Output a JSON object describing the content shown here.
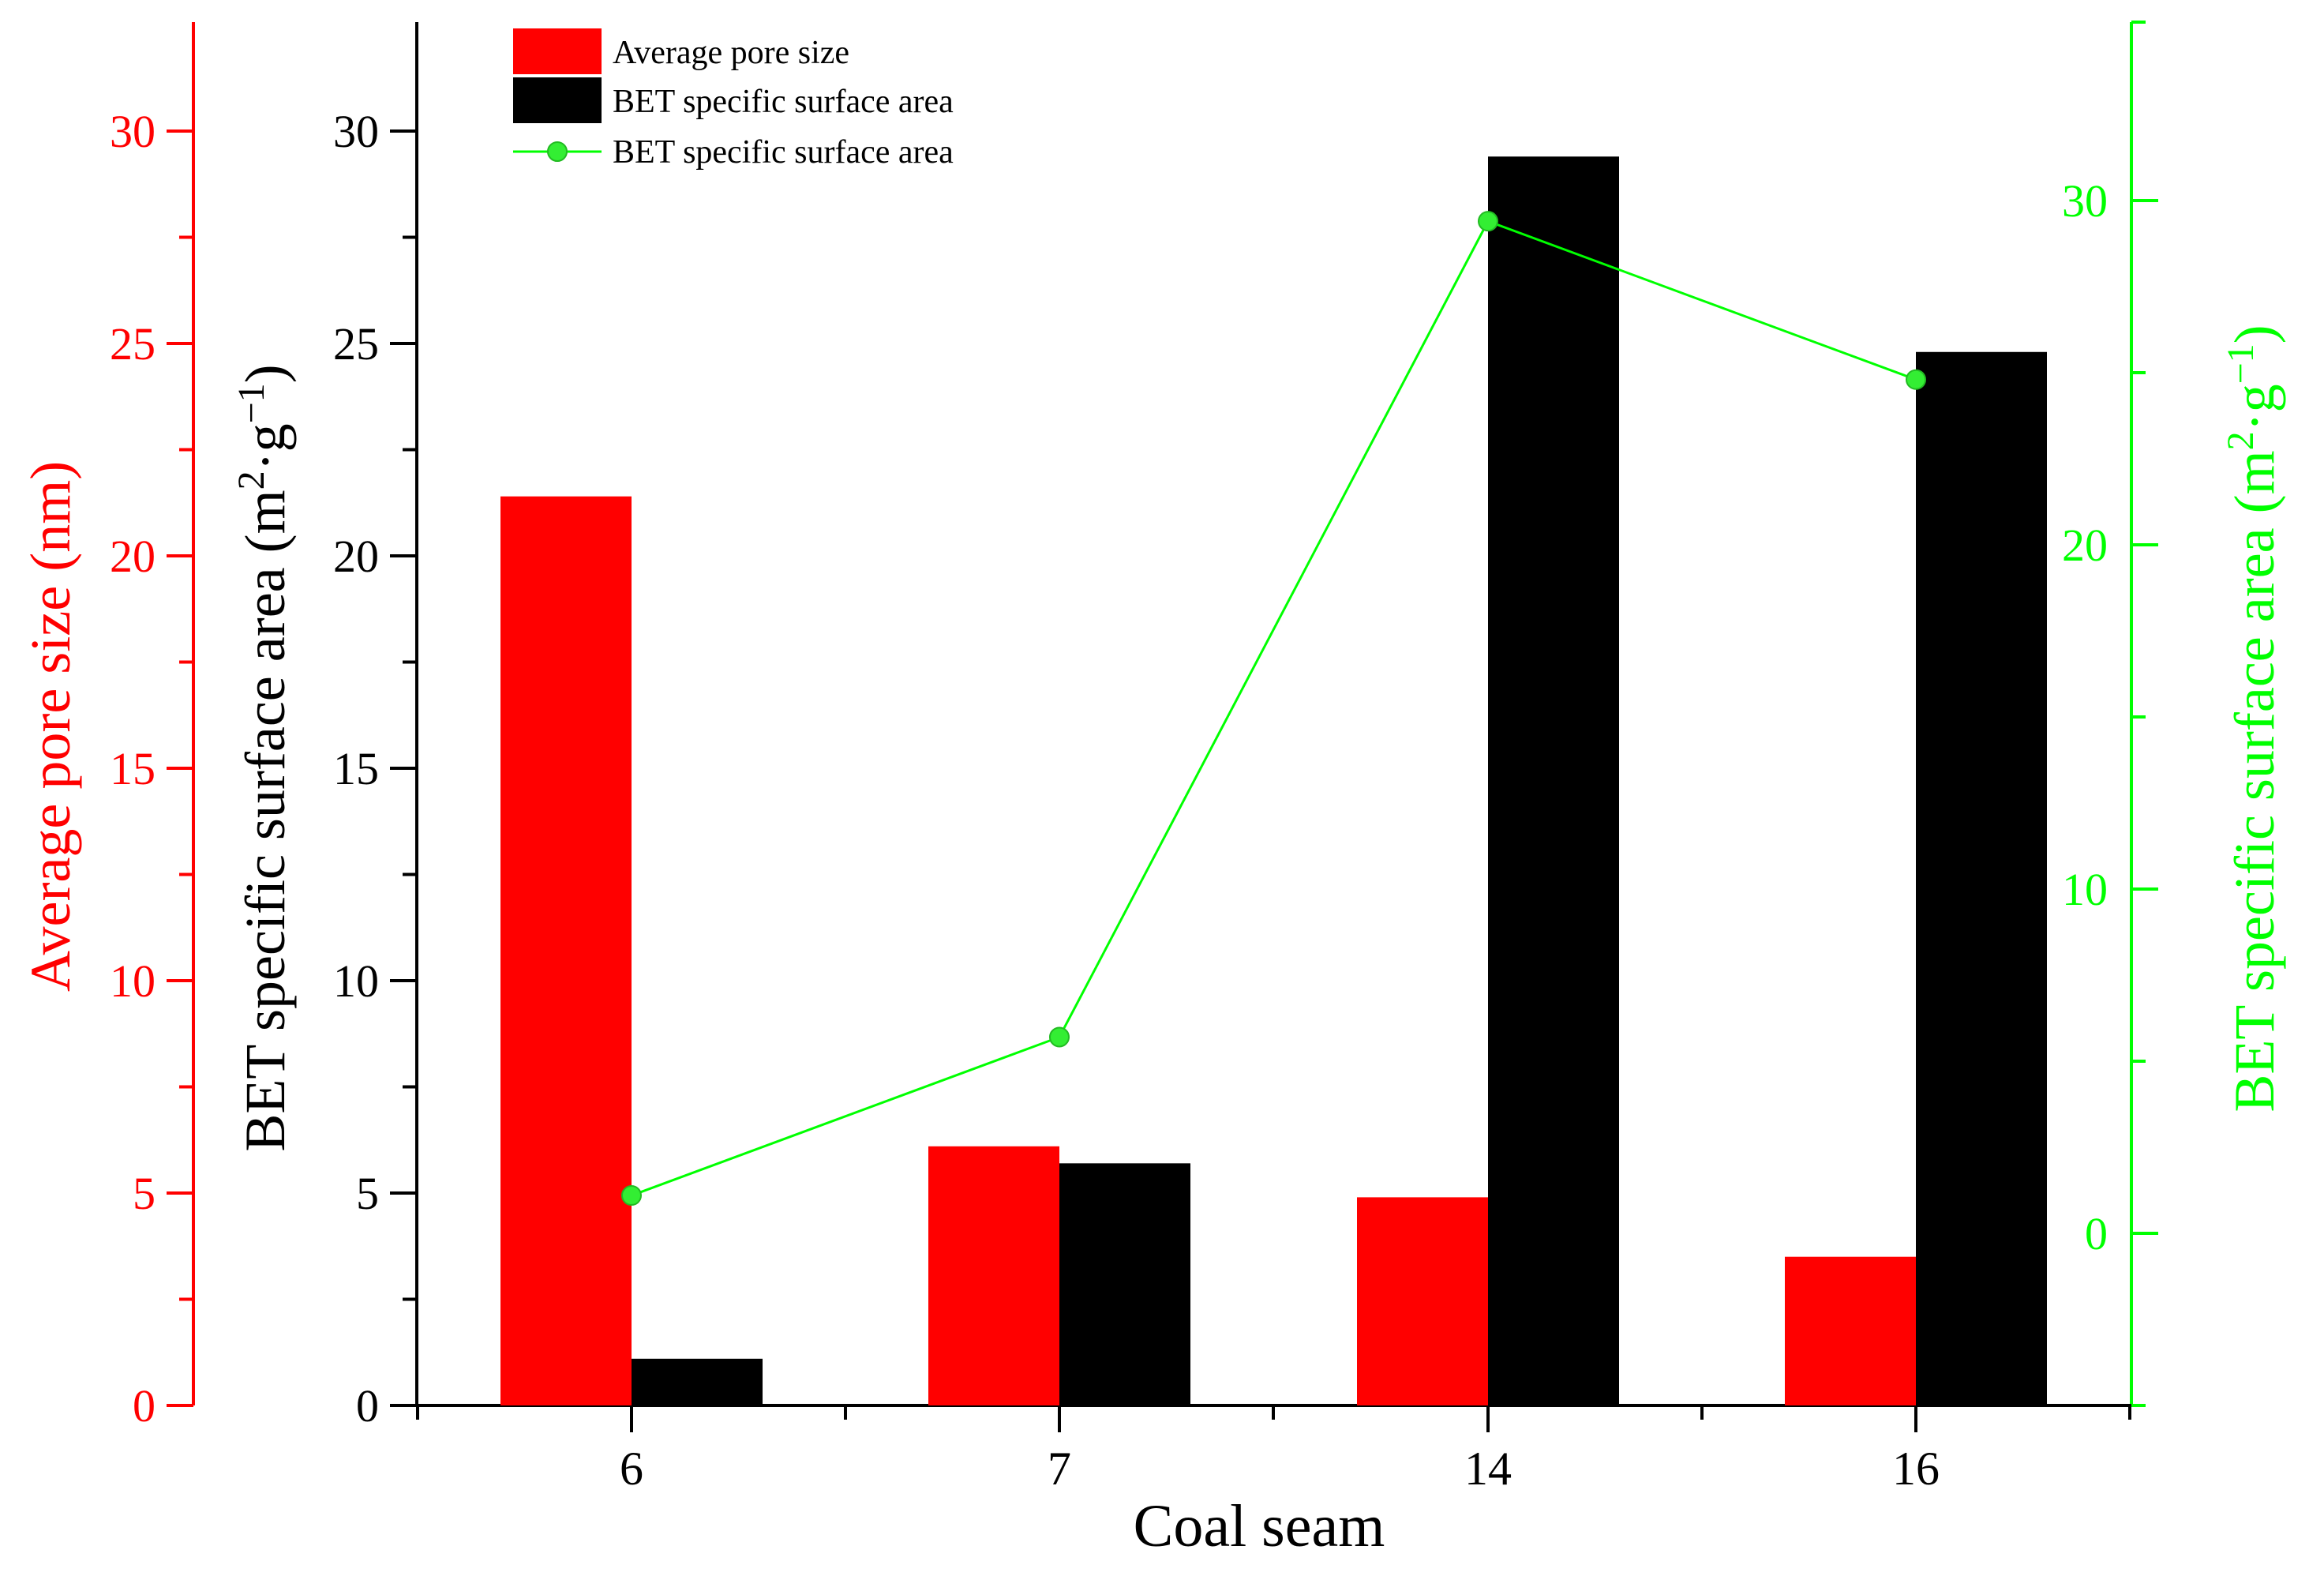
{
  "colors": {
    "pore": "#ff0000",
    "bet_bar": "#000000",
    "bet_line": "#00ff00",
    "line_marker_fill": "#33ee33",
    "axis_black": "#000000"
  },
  "chart_data": {
    "type": "bar",
    "xlabel": "Coal seam",
    "categories": [
      "6",
      "7",
      "14",
      "16"
    ],
    "axes": {
      "left_outer": {
        "label": "Average pore size (nm)",
        "range": [
          0,
          32.5
        ],
        "ticks": [
          0,
          5,
          10,
          15,
          20,
          25,
          30
        ],
        "tick_labels": [
          "0",
          "5",
          "10",
          "15",
          "20",
          "25",
          "30"
        ],
        "color": "#ff0000"
      },
      "left_inner": {
        "label_main": "BET specific surface area (m",
        "label_sup1": "2",
        "label_mid": "·g",
        "label_sup2": "−1",
        "label_end": ")",
        "range": [
          0,
          32.5
        ],
        "ticks": [
          0,
          5,
          10,
          15,
          20,
          25,
          30
        ],
        "tick_labels": [
          "0",
          "5",
          "10",
          "15",
          "20",
          "25",
          "30"
        ],
        "color": "#000000"
      },
      "right": {
        "label_main": "BET specific surface area (m",
        "label_sup1": "2",
        "label_mid": "·g",
        "label_sup2": "−1",
        "label_end": ")",
        "range": [
          -5,
          35
        ],
        "ticks": [
          0,
          10,
          20,
          30
        ],
        "tick_labels": [
          "0",
          "10",
          "20",
          "30"
        ],
        "color": "#00ff00"
      }
    },
    "series": [
      {
        "name": "Average pore size",
        "kind": "bar",
        "axis": "left_outer",
        "values": [
          21.4,
          6.1,
          4.9,
          3.5
        ]
      },
      {
        "name": "BET specific surface area",
        "kind": "bar",
        "axis": "left_inner",
        "values": [
          1.1,
          5.7,
          29.4,
          24.8
        ]
      },
      {
        "name": "BET specific surface area",
        "kind": "line",
        "axis": "right",
        "values": [
          1.1,
          5.7,
          29.4,
          24.8
        ]
      }
    ],
    "legend": {
      "position": "top-left",
      "items": [
        "Average pore size",
        "BET specific surface area",
        "BET specific surface area"
      ]
    }
  }
}
